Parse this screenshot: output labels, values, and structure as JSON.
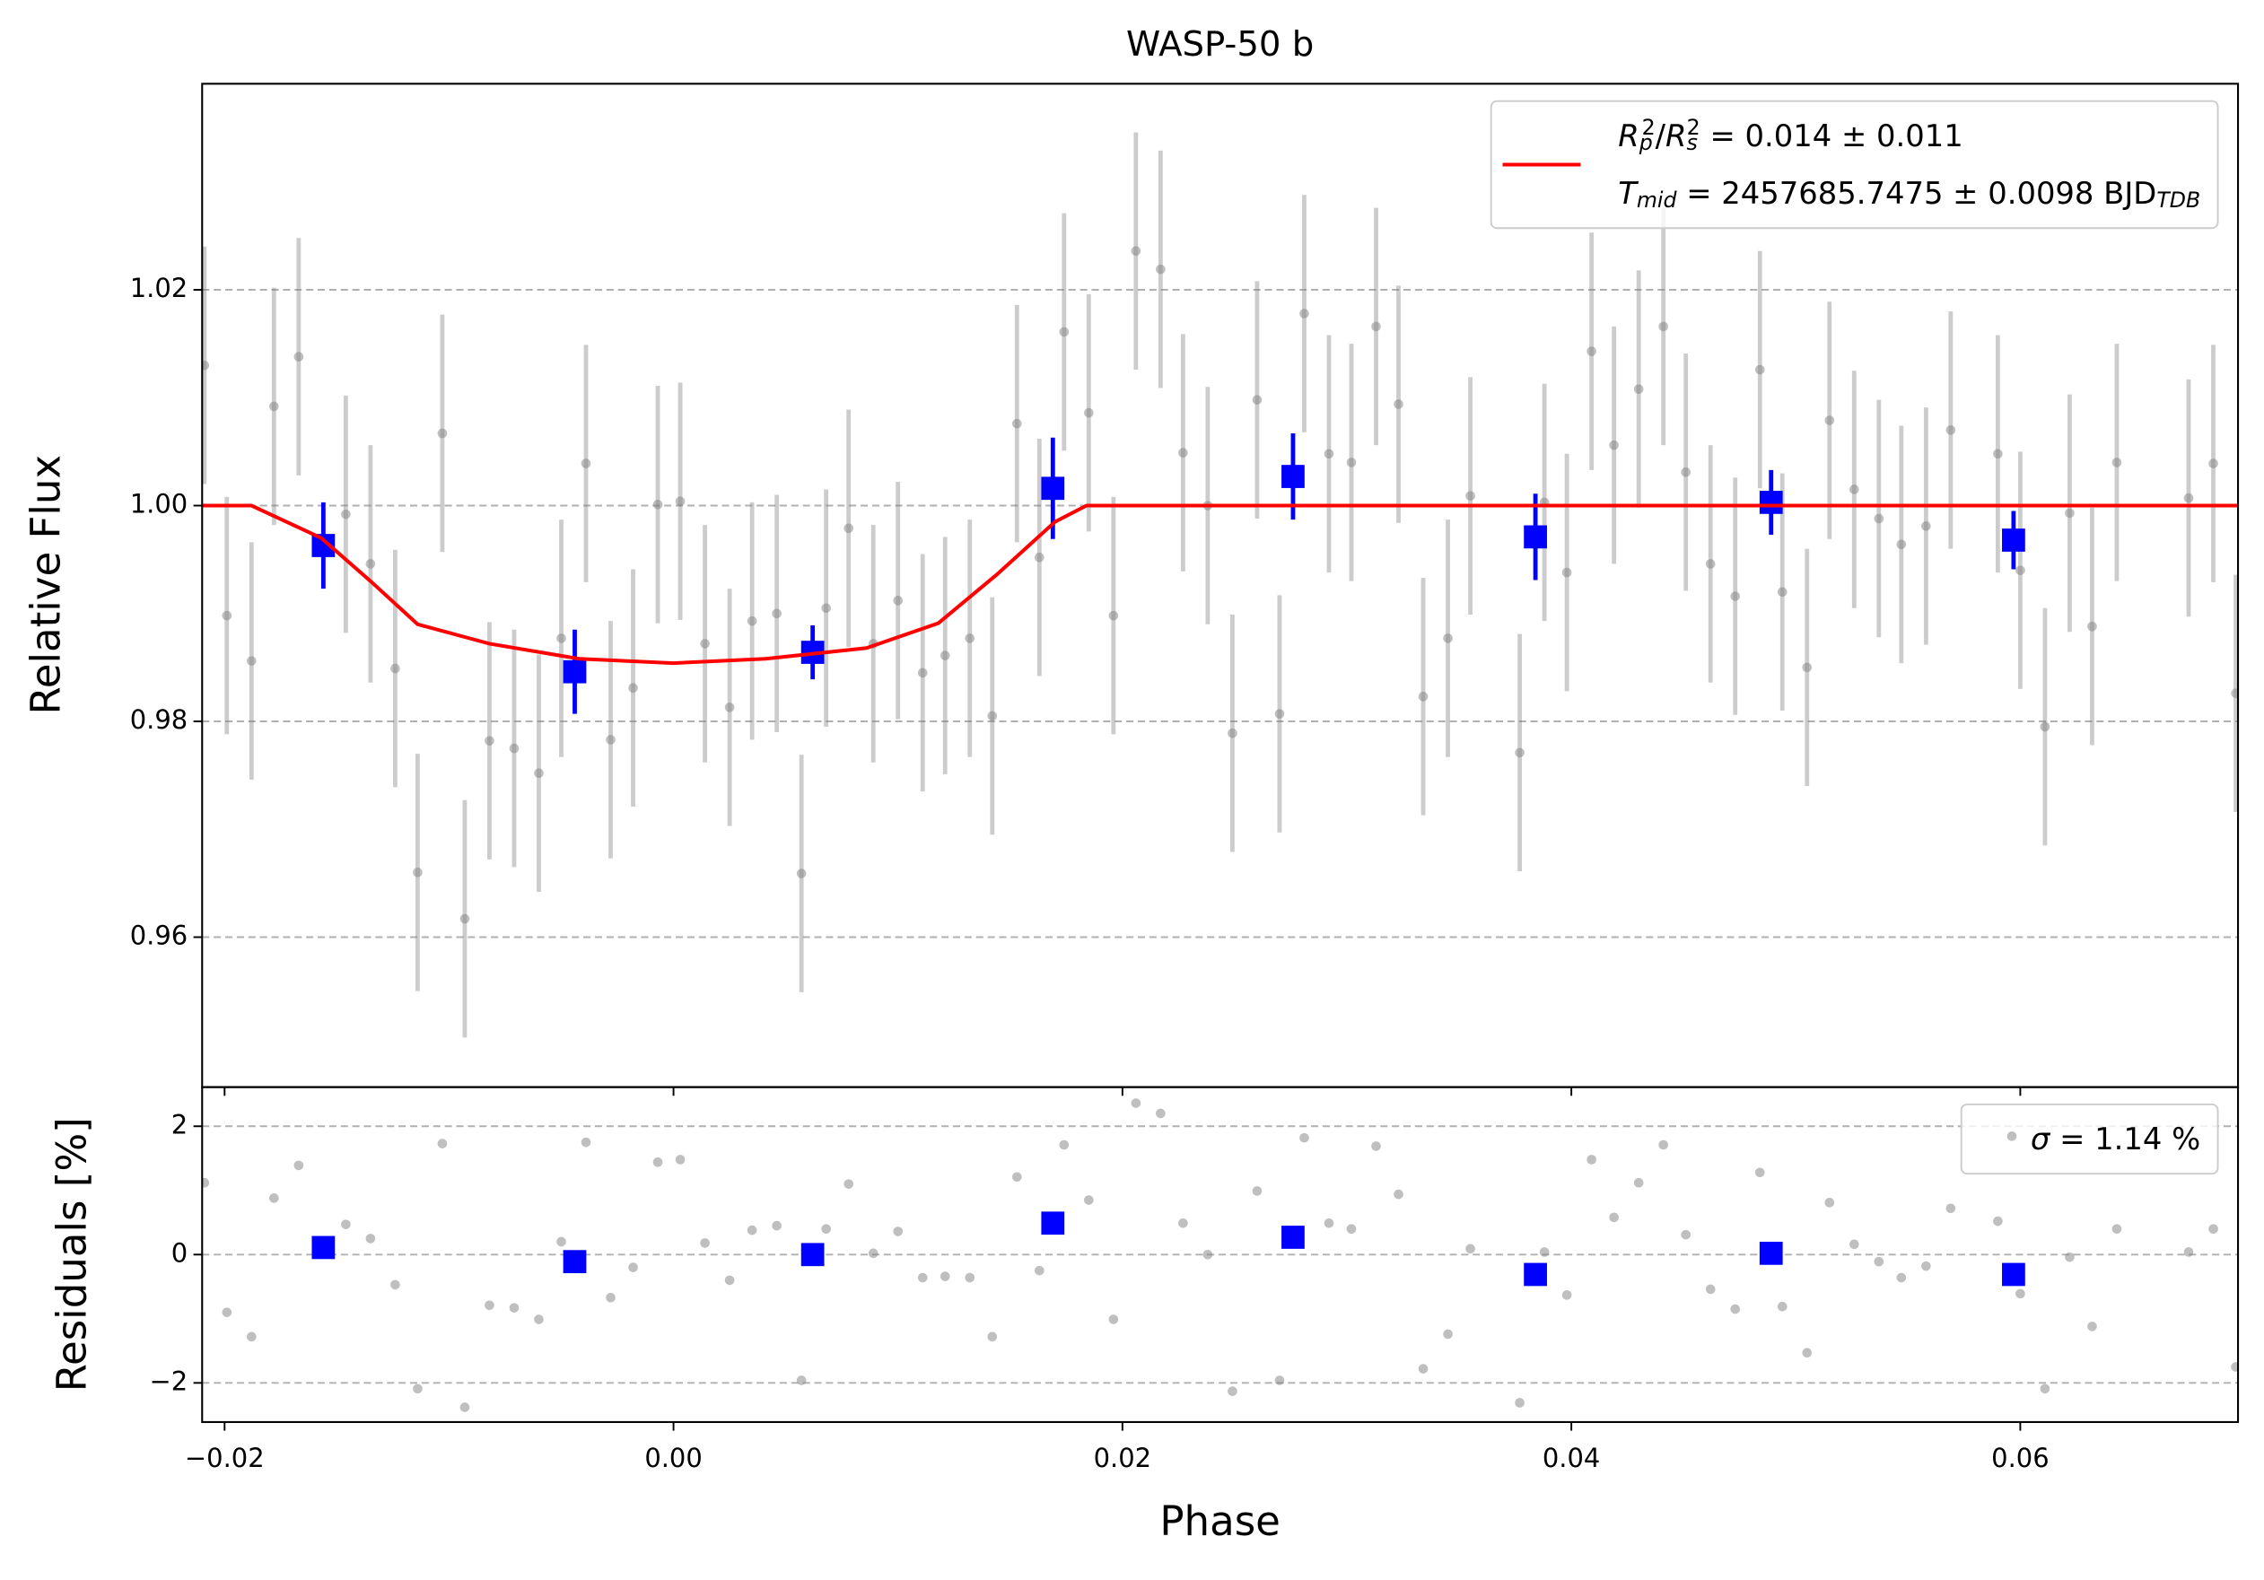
{
  "chart_data": [
    {
      "type": "scatter",
      "title": "WASP-50 b",
      "ylabel": "Relative Flux",
      "xlim": [
        -0.021,
        0.0697
      ],
      "ylim": [
        0.9461,
        1.0391
      ],
      "yticks": [
        0.96,
        0.98,
        {
          "value": 1,
          "label": "1.00"
        },
        1.02
      ],
      "grid": true,
      "legend": "upper right",
      "series": [
        {
          "type": "errorbar",
          "marker": "circle",
          "color": "#808080",
          "x": [
            -0.0209,
            -0.0199,
            -0.0188,
            -0.0178,
            -0.0167,
            -0.0146,
            -0.0135,
            -0.0124,
            -0.0114,
            -0.0103,
            -0.0093,
            -0.0082,
            -0.0071,
            -0.006,
            -0.005,
            -0.0039,
            -0.0028,
            -0.0018,
            -0.0007,
            0.0003,
            0.0014,
            0.0025,
            0.0035,
            0.0046,
            0.0057,
            0.0068,
            0.0078,
            0.0089,
            0.01,
            0.0111,
            0.0121,
            0.0132,
            0.0142,
            0.0153,
            0.0163,
            0.0174,
            0.0185,
            0.0196,
            0.0206,
            0.0217,
            0.0227,
            0.0238,
            0.0249,
            0.026,
            0.027,
            0.0281,
            0.0292,
            0.0302,
            0.0313,
            0.0323,
            0.0334,
            0.0345,
            0.0355,
            0.0377,
            0.0388,
            0.0398,
            0.0409,
            0.0419,
            0.043,
            0.0441,
            0.0451,
            0.0462,
            0.0473,
            0.0484,
            0.0494,
            0.0505,
            0.0515,
            0.0526,
            0.0537,
            0.0547,
            0.0558,
            0.0569,
            0.059,
            0.06,
            0.0611,
            0.0622,
            0.0632,
            0.0643,
            0.0675,
            0.0686,
            0.0696
          ],
          "values": [
            1.013,
            0.9898,
            0.9856,
            1.0092,
            1.0138,
            0.9992,
            0.9946,
            0.9849,
            0.966,
            1.0067,
            0.9617,
            0.9782,
            0.9775,
            0.9752,
            0.9877,
            1.0039,
            0.9783,
            0.9831,
            1.0001,
            1.0004,
            0.9872,
            0.9813,
            0.9893,
            0.99,
            0.9659,
            0.9905,
            0.9979,
            0.9872,
            0.9912,
            0.9845,
            0.9861,
            0.9877,
            0.9805,
            1.0076,
            0.9952,
            1.0161,
            1.0086,
            0.9898,
            1.0236,
            1.0219,
            1.0049,
            1.0,
            0.9789,
            1.0098,
            0.9807,
            1.0178,
            1.0048,
            1.004,
            1.0166,
            1.0094,
            0.9823,
            0.9877,
            1.0009,
            0.9771,
            1.0003,
            0.9938,
            1.0143,
            1.0056,
            1.0108,
            1.0166,
            1.0031,
            0.9946,
            0.9916,
            1.0126,
            0.992,
            0.985,
            1.0079,
            1.0015,
            0.9988,
            0.9964,
            0.9981,
            1.007,
            1.0048,
            0.994,
            0.9795,
            0.9993,
            0.9888,
            1.004,
            1.0007,
            1.0039,
            0.9826
          ],
          "errors": [
            0.011,
            0.011,
            0.011,
            0.011,
            0.011,
            0.011,
            0.011,
            0.011,
            0.011,
            0.011,
            0.011,
            0.011,
            0.011,
            0.011,
            0.011,
            0.011,
            0.011,
            0.011,
            0.011,
            0.011,
            0.011,
            0.011,
            0.011,
            0.011,
            0.011,
            0.011,
            0.011,
            0.011,
            0.011,
            0.011,
            0.011,
            0.011,
            0.011,
            0.011,
            0.011,
            0.011,
            0.011,
            0.011,
            0.011,
            0.011,
            0.011,
            0.011,
            0.011,
            0.011,
            0.011,
            0.011,
            0.011,
            0.011,
            0.011,
            0.011,
            0.011,
            0.011,
            0.011,
            0.011,
            0.011,
            0.011,
            0.011,
            0.011,
            0.011,
            0.011,
            0.011,
            0.011,
            0.011,
            0.011,
            0.011,
            0.011,
            0.011,
            0.011,
            0.011,
            0.011,
            0.011,
            0.011,
            0.011,
            0.011,
            0.011,
            0.011,
            0.011,
            0.011,
            0.011,
            0.011,
            0.011
          ]
        },
        {
          "type": "errorbar",
          "marker": "square",
          "color": "#0000ff",
          "x": [
            -0.0156,
            -0.0044,
            0.0062,
            0.0169,
            0.0276,
            0.0384,
            0.0489,
            0.0597
          ],
          "values": [
            0.9963,
            0.9846,
            0.9864,
            1.0016,
            1.0027,
            0.9971,
            1.0003,
            0.9968
          ],
          "errors": [
            0.004,
            0.0039,
            0.0025,
            0.0047,
            0.004,
            0.004,
            0.003,
            0.0027
          ]
        },
        {
          "type": "line",
          "color": "#ff0000",
          "label": [
            [
              {
                "text": "R",
                "style": "italic"
              },
              {
                "text": "p",
                "style": "sub-italic"
              },
              {
                "text": "2",
                "style": "sup"
              },
              {
                "text": "/",
                "style": "normal"
              },
              {
                "text": "R",
                "style": "italic"
              },
              {
                "text": "s",
                "style": "sub-italic"
              },
              {
                "text": "2",
                "style": "sup"
              },
              {
                "text": " = 0.014 ± 0.011",
                "style": "normal"
              }
            ],
            [
              {
                "text": "T",
                "style": "italic"
              },
              {
                "text": "mid",
                "style": "sub-italic"
              },
              {
                "text": " = 2457685.7475 ± 0.0098 BJD",
                "style": "normal"
              },
              {
                "text": "TDB",
                "style": "sub-italic"
              }
            ]
          ],
          "x": [
            -0.021,
            -0.0188,
            -0.0157,
            -0.0135,
            -0.0114,
            -0.0082,
            -0.0042,
            0,
            0.0041,
            0.0086,
            0.0118,
            0.0144,
            0.017,
            0.0184,
            0.0697
          ],
          "values": [
            1,
            1,
            0.997,
            0.993,
            0.989,
            0.9872,
            0.9858,
            0.9854,
            0.9858,
            0.9868,
            0.9891,
            0.9936,
            0.9985,
            1,
            1
          ]
        }
      ]
    },
    {
      "type": "scatter",
      "ylabel": "Residuals [%]",
      "xlabel": "Phase",
      "xlim": [
        -0.021,
        0.0697
      ],
      "ylim": [
        -2.61,
        2.61
      ],
      "xticks": [
        {
          "value": -0.02,
          "label": "−0.02"
        },
        {
          "value": 0,
          "label": "0.00"
        },
        0.02,
        0.04,
        0.06
      ],
      "yticks": [
        {
          "value": -2,
          "label": "−2"
        },
        0,
        2
      ],
      "grid": true,
      "legend": "upper right",
      "series": [
        {
          "type": "scatter",
          "marker": "circle",
          "color": "#808080",
          "label": [
            [
              {
                "text": "σ",
                "style": "italic"
              },
              {
                "text": " = 1.14 %",
                "style": "normal"
              }
            ]
          ],
          "x": [
            -0.0209,
            -0.0199,
            -0.0188,
            -0.0178,
            -0.0167,
            -0.0146,
            -0.0135,
            -0.0124,
            -0.0114,
            -0.0103,
            -0.0093,
            -0.0082,
            -0.0071,
            -0.006,
            -0.005,
            -0.0039,
            -0.0028,
            -0.0018,
            -0.0007,
            0.0003,
            0.0014,
            0.0025,
            0.0035,
            0.0046,
            0.0057,
            0.0068,
            0.0078,
            0.0089,
            0.01,
            0.0111,
            0.0121,
            0.0132,
            0.0142,
            0.0153,
            0.0163,
            0.0174,
            0.0185,
            0.0196,
            0.0206,
            0.0217,
            0.0227,
            0.0238,
            0.0249,
            0.026,
            0.027,
            0.0281,
            0.0292,
            0.0302,
            0.0313,
            0.0323,
            0.0334,
            0.0345,
            0.0355,
            0.0377,
            0.0388,
            0.0398,
            0.0409,
            0.0419,
            0.043,
            0.0441,
            0.0451,
            0.0462,
            0.0473,
            0.0484,
            0.0494,
            0.0505,
            0.0515,
            0.0526,
            0.0537,
            0.0547,
            0.0558,
            0.0569,
            0.059,
            0.06,
            0.0611,
            0.0622,
            0.0632,
            0.0643,
            0.0675,
            0.0686,
            0.0696
          ],
          "values": [
            1.12,
            -0.9,
            -1.28,
            0.88,
            1.39,
            0.47,
            0.25,
            -0.47,
            -2.09,
            1.73,
            -2.38,
            -0.79,
            -0.83,
            -1.01,
            0.2,
            1.75,
            -0.67,
            -0.2,
            1.44,
            1.48,
            0.18,
            -0.4,
            0.38,
            0.45,
            -1.96,
            0.4,
            1.1,
            0.02,
            0.36,
            -0.36,
            -0.34,
            -0.36,
            -1.28,
            1.21,
            -0.25,
            1.71,
            0.85,
            -1.01,
            2.36,
            2.2,
            0.49,
            0,
            -2.13,
            0.99,
            -1.96,
            1.82,
            0.49,
            0.4,
            1.69,
            0.94,
            -1.78,
            -1.24,
            0.09,
            -2.31,
            0.04,
            -0.63,
            1.48,
            0.58,
            1.12,
            1.71,
            0.31,
            -0.54,
            -0.85,
            1.28,
            -0.81,
            -1.53,
            0.81,
            0.16,
            -0.11,
            -0.36,
            -0.18,
            0.72,
            0.52,
            -0.61,
            -2.09,
            -0.04,
            -1.12,
            0.4,
            0.04,
            0.4,
            -1.75
          ]
        },
        {
          "type": "scatter",
          "marker": "square",
          "color": "#0000ff",
          "x": [
            -0.0156,
            -0.0044,
            0.0062,
            0.0169,
            0.0276,
            0.0384,
            0.0489,
            0.0597
          ],
          "values": [
            0.11,
            -0.11,
            0,
            0.49,
            0.27,
            -0.31,
            0.02,
            -0.31
          ]
        }
      ]
    }
  ]
}
